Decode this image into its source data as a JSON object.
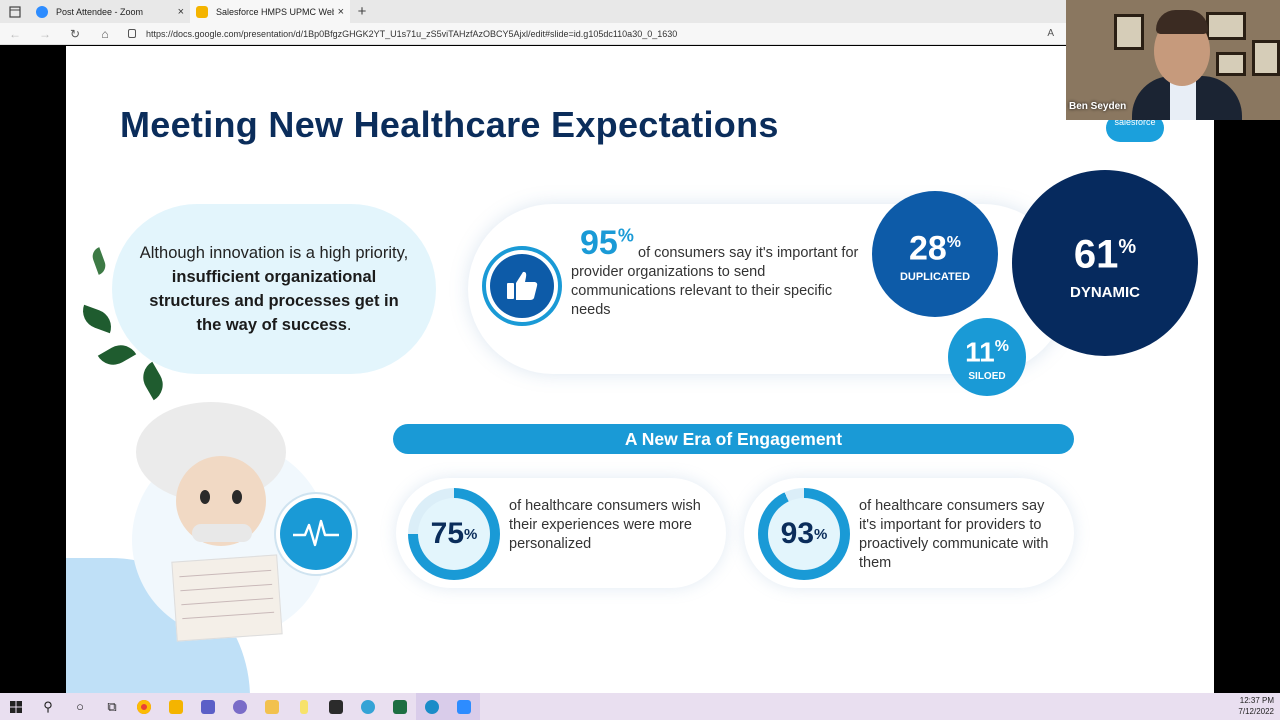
{
  "browser": {
    "tabs": [
      {
        "label": "Post Attendee - Zoom",
        "icon": "zoom-icon",
        "color": "#2d8cff",
        "active": false
      },
      {
        "label": "Salesforce HMPS UPMC Webina",
        "icon": "slides-icon",
        "color": "#f4b400",
        "active": true
      }
    ],
    "new_tab": "+",
    "close": "×",
    "url": "https://docs.google.com/presentation/d/1Bp0BfgzGHGK2YT_U1s71u_zS5viTAHzfAzOBCY5Ajxl/edit#slide=id.g105dc110a30_0_1630"
  },
  "slide": {
    "title": "Meeting New Healthcare Expectations",
    "logo_text": "salesforce",
    "quote": {
      "pre": "Although innovation is a high priority,",
      "bold": "insufficient organizational structures and processes get in the way of success",
      "post": "."
    },
    "stat95": {
      "num": "95",
      "pct": "%",
      "text": "of consumers say it's important for provider organizations to send communications relevant to their specific needs"
    },
    "circles": {
      "dup": {
        "num": "28",
        "pct": "%",
        "label": "DUPLICATED"
      },
      "dyn": {
        "num": "61",
        "pct": "%",
        "label": "DYNAMIC"
      },
      "silo": {
        "num": "11",
        "pct": "%",
        "label": "SILOED"
      }
    },
    "banner": "A New Era of Engagement",
    "stat75": {
      "num": "75",
      "pct": "%",
      "text": "of healthcare consumers wish their experiences were more personalized",
      "value": 75
    },
    "stat93": {
      "num": "93",
      "pct": "%",
      "text": "of healthcare consumers say it's important for providers to proactively communicate with them",
      "value": 93
    },
    "colors": {
      "navy": "#0b2d5b",
      "blue": "#0d5ba8",
      "cyan": "#1a9ad6",
      "dark": "#062a5e"
    }
  },
  "video": {
    "name": "Ben Seyden"
  },
  "taskbar": {
    "time": "12:37 PM",
    "date": "7/12/2022"
  }
}
